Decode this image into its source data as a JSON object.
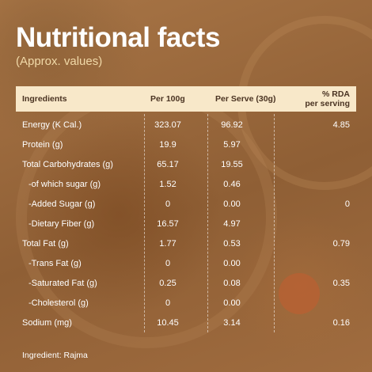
{
  "title": "Nutritional facts",
  "subtitle": "(Approx. values)",
  "columns": {
    "ingredients": "Ingredients",
    "per100": "Per 100g",
    "per_serve": "Per Serve (30g)",
    "rda_line1": "% RDA",
    "rda_line2": "per serving"
  },
  "rows": [
    {
      "name": "Energy (K Cal.)",
      "per100": "323.07",
      "serve": "96.92",
      "rda": "4.85"
    },
    {
      "name": "Protein (g)",
      "per100": "19.9",
      "serve": "5.97",
      "rda": ""
    },
    {
      "name": "Total Carbohydrates (g)",
      "per100": "65.17",
      "serve": "19.55",
      "rda": ""
    },
    {
      "name": "-of which sugar (g)",
      "per100": "1.52",
      "serve": "0.46",
      "rda": ""
    },
    {
      "name": "-Added Sugar (g)",
      "per100": "0",
      "serve": "0.00",
      "rda": "0"
    },
    {
      "name": "-Dietary Fiber (g)",
      "per100": "16.57",
      "serve": "4.97",
      "rda": ""
    },
    {
      "name": "Total Fat (g)",
      "per100": "1.77",
      "serve": "0.53",
      "rda": "0.79"
    },
    {
      "name": "-Trans Fat (g)",
      "per100": "0",
      "serve": "0.00",
      "rda": ""
    },
    {
      "name": "-Saturated Fat (g)",
      "per100": "0.25",
      "serve": "0.08",
      "rda": "0.35"
    },
    {
      "name": "-Cholesterol (g)",
      "per100": "0",
      "serve": "0.00",
      "rda": ""
    },
    {
      "name": "Sodium (mg)",
      "per100": "10.45",
      "serve": "3.14",
      "rda": "0.16"
    }
  ],
  "footer": "Ingredient: Rajma",
  "colors": {
    "header_bg": "#f8e8c9",
    "subtitle": "#f1d9a8",
    "background": "#9a6a3c"
  }
}
